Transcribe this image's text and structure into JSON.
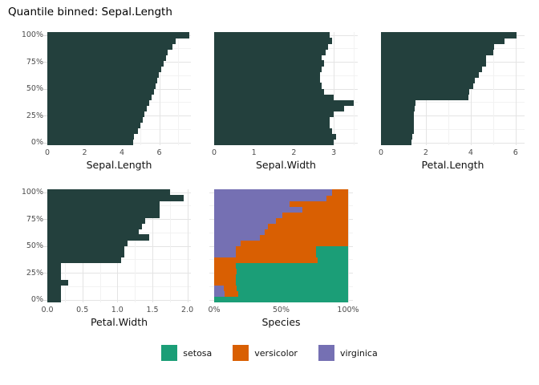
{
  "title": "Quantile binned: Sepal.Length",
  "colors": {
    "bar_fill": "#23403d",
    "grid_major": "#e4e4e4",
    "grid_minor": "#f2f2f2",
    "tick_label": "#4d4d4d",
    "axis_title": "#111111",
    "tick_mark": "#d9d9d9",
    "setosa": "#1b9e77",
    "versicolor": "#d95f02",
    "virginica": "#7570b3"
  },
  "y_axis": {
    "tick_labels": [
      "0%",
      "25%",
      "50%",
      "75%",
      "100%"
    ],
    "tick_values": [
      0,
      25,
      50,
      75,
      100
    ],
    "minor_values": [
      12.5,
      37.5,
      62.5,
      87.5
    ]
  },
  "legend": {
    "items": [
      {
        "name": "setosa",
        "label": "setosa",
        "color": "#1b9e77"
      },
      {
        "name": "versicolor",
        "label": "versicolor",
        "color": "#d95f02"
      },
      {
        "name": "virginica",
        "label": "virginica",
        "color": "#7570b3"
      }
    ]
  },
  "chart_data": [
    {
      "type": "bar",
      "xlabel": "Sepal.Length",
      "x_ticks": [
        {
          "label": "0",
          "value": 0
        },
        {
          "label": "2",
          "value": 2
        },
        {
          "label": "4",
          "value": 4
        },
        {
          "label": "6",
          "value": 6
        }
      ],
      "x_minor": [
        1,
        3,
        5,
        7
      ],
      "xlim": [
        0,
        7.7
      ],
      "ylabel_bins": "quantile bins 0-100% (5% each, bottom to top)",
      "values_bottom_to_top": [
        4.6,
        4.65,
        4.85,
        5.0,
        5.1,
        5.2,
        5.35,
        5.45,
        5.6,
        5.7,
        5.8,
        5.9,
        6.0,
        6.1,
        6.25,
        6.35,
        6.45,
        6.7,
        6.9,
        7.6
      ]
    },
    {
      "type": "bar",
      "xlabel": "Sepal.Width",
      "x_ticks": [
        {
          "label": "0",
          "value": 0
        },
        {
          "label": "1",
          "value": 1
        },
        {
          "label": "2",
          "value": 2
        },
        {
          "label": "3",
          "value": 3
        }
      ],
      "x_minor": [
        0.5,
        1.5,
        2.5,
        3.5
      ],
      "xlim": [
        0,
        3.6
      ],
      "values_bottom_to_top": [
        3.0,
        3.05,
        2.95,
        2.9,
        2.9,
        3.0,
        3.25,
        3.5,
        3.0,
        2.75,
        2.7,
        2.65,
        2.65,
        2.7,
        2.75,
        2.7,
        2.8,
        2.85,
        2.95,
        2.9
      ]
    },
    {
      "type": "bar",
      "xlabel": "Petal.Length",
      "x_ticks": [
        {
          "label": "0",
          "value": 0
        },
        {
          "label": "2",
          "value": 2
        },
        {
          "label": "4",
          "value": 4
        },
        {
          "label": "6",
          "value": 6
        }
      ],
      "x_minor": [
        1,
        3,
        5
      ],
      "xlim": [
        0,
        6.4
      ],
      "values_bottom_to_top": [
        1.35,
        1.4,
        1.45,
        1.45,
        1.45,
        1.45,
        1.5,
        1.55,
        3.9,
        3.95,
        4.1,
        4.2,
        4.35,
        4.5,
        4.7,
        4.7,
        5.0,
        5.05,
        5.5,
        6.05
      ]
    },
    {
      "type": "bar",
      "xlabel": "Petal.Width",
      "x_ticks": [
        {
          "label": "0.0",
          "value": 0
        },
        {
          "label": "0.5",
          "value": 0.5
        },
        {
          "label": "1.0",
          "value": 1.0
        },
        {
          "label": "1.5",
          "value": 1.5
        },
        {
          "label": "2.0",
          "value": 2.0
        }
      ],
      "x_minor": [
        0.25,
        0.75,
        1.25,
        1.75
      ],
      "xlim": [
        0,
        2.05
      ],
      "values_bottom_to_top": [
        0.2,
        0.2,
        0.2,
        0.3,
        0.2,
        0.2,
        0.2,
        1.05,
        1.1,
        1.1,
        1.15,
        1.45,
        1.3,
        1.35,
        1.4,
        1.6,
        1.6,
        1.6,
        1.95,
        1.75
      ]
    },
    {
      "type": "stacked_bar",
      "xlabel": "Species",
      "x_ticks": [
        {
          "label": "0%",
          "value": 0
        },
        {
          "label": "50%",
          "value": 0.5
        },
        {
          "label": "100%",
          "value": 1
        }
      ],
      "x_minor": [
        0.25,
        0.75
      ],
      "xlim": [
        0,
        1
      ],
      "stack_order": [
        "virginica",
        "versicolor",
        "setosa"
      ],
      "bins_pct_bottom_to_top": [
        [
          0,
          0,
          100
        ],
        [
          8,
          10,
          82
        ],
        [
          7,
          10,
          83
        ],
        [
          0,
          16,
          84
        ],
        [
          0,
          16,
          84
        ],
        [
          0,
          17,
          83
        ],
        [
          0,
          16,
          84
        ],
        [
          0,
          77,
          23
        ],
        [
          16,
          60,
          24
        ],
        [
          16,
          60,
          24
        ],
        [
          20,
          80,
          0
        ],
        [
          34,
          66,
          0
        ],
        [
          38,
          62,
          0
        ],
        [
          40,
          60,
          0
        ],
        [
          46,
          54,
          0
        ],
        [
          51,
          49,
          0
        ],
        [
          66,
          34,
          0
        ],
        [
          56,
          44,
          0
        ],
        [
          84,
          16,
          0
        ],
        [
          88,
          12,
          0
        ]
      ]
    }
  ]
}
